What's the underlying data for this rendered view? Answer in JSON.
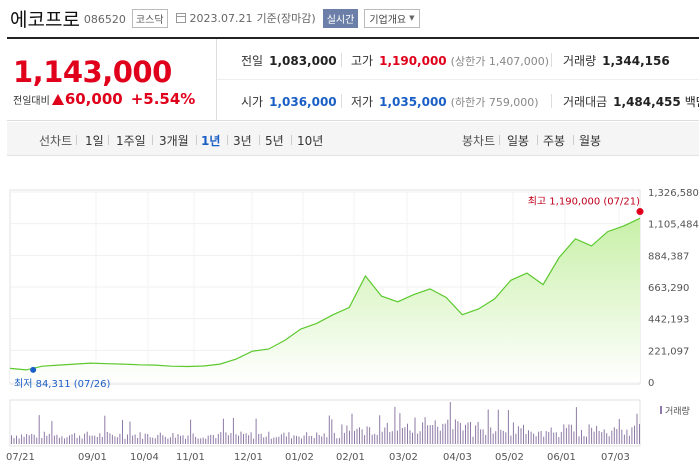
{
  "header": {
    "name": "에코프로",
    "code": "086520",
    "market": "코스닥",
    "date": "2023.07.21",
    "basis": "기준(장마감)",
    "realtime": "실시간",
    "company": "기업개요"
  },
  "summary": {
    "price": "1,143,000",
    "change_label": "전일대비",
    "change_amount": "60,000",
    "change_percent": "+5.54%",
    "prev_close_label": "전일",
    "prev_close": "1,083,000",
    "high_label": "고가",
    "high": "1,190,000",
    "upper_limit": "(상한가 1,407,000)",
    "volume_label": "거래량",
    "volume": "1,344,156",
    "open_label": "시가",
    "open": "1,036,000",
    "low_label": "저가",
    "low": "1,035,000",
    "lower_limit": "(하한가 759,000)",
    "amount_label": "거래대금",
    "amount": "1,484,455",
    "amount_unit": "백만"
  },
  "periods": {
    "line_label": "선차트",
    "items": [
      "1일",
      "1주일",
      "3개월",
      "1년",
      "3년",
      "5년",
      "10년"
    ],
    "active": "1년",
    "candle_label": "봉차트",
    "candles": [
      "일봉",
      "주봉",
      "월봉"
    ]
  },
  "chart_data": {
    "type": "area",
    "y_ticks": [
      "1,326,580",
      "1,105,484",
      "884,387",
      "663,290",
      "442,193",
      "221,097",
      "0"
    ],
    "ylim": [
      0,
      1326580
    ],
    "x_ticks": [
      "07/21",
      "09/01",
      "10/04",
      "11/01",
      "12/01",
      "01/02",
      "02/01",
      "03/02",
      "04/03",
      "05/02",
      "06/01",
      "07/03"
    ],
    "max_label": "최고 1,190,000 (07/21)",
    "min_label": "최저 84,311 (07/26)",
    "volume_legend": "거래량",
    "colors": {
      "line": "#5cc92e",
      "fill_top": "#c8f0a8",
      "max_dot": "#e0001b",
      "min_dot": "#1a5fc5",
      "volume": "#8e7aa6"
    },
    "series": [
      {
        "x": "07/21",
        "y": 95000
      },
      {
        "x": "07/26",
        "y": 84311
      },
      {
        "x": "08/01",
        "y": 110000
      },
      {
        "x": "08/15",
        "y": 118000
      },
      {
        "x": "09/01",
        "y": 125000
      },
      {
        "x": "09/15",
        "y": 132000
      },
      {
        "x": "10/04",
        "y": 128000
      },
      {
        "x": "10/18",
        "y": 125000
      },
      {
        "x": "11/01",
        "y": 120000
      },
      {
        "x": "11/15",
        "y": 118000
      },
      {
        "x": "12/01",
        "y": 110000
      },
      {
        "x": "12/15",
        "y": 108000
      },
      {
        "x": "01/02",
        "y": 112000
      },
      {
        "x": "01/16",
        "y": 125000
      },
      {
        "x": "02/01",
        "y": 160000
      },
      {
        "x": "02/10",
        "y": 215000
      },
      {
        "x": "02/20",
        "y": 230000
      },
      {
        "x": "03/02",
        "y": 290000
      },
      {
        "x": "03/10",
        "y": 370000
      },
      {
        "x": "03/20",
        "y": 410000
      },
      {
        "x": "03/28",
        "y": 470000
      },
      {
        "x": "04/03",
        "y": 520000
      },
      {
        "x": "04/10",
        "y": 740000
      },
      {
        "x": "04/14",
        "y": 600000
      },
      {
        "x": "04/20",
        "y": 560000
      },
      {
        "x": "04/28",
        "y": 610000
      },
      {
        "x": "05/02",
        "y": 650000
      },
      {
        "x": "05/12",
        "y": 590000
      },
      {
        "x": "05/22",
        "y": 470000
      },
      {
        "x": "06/01",
        "y": 510000
      },
      {
        "x": "06/08",
        "y": 580000
      },
      {
        "x": "06/15",
        "y": 710000
      },
      {
        "x": "06/22",
        "y": 760000
      },
      {
        "x": "06/28",
        "y": 680000
      },
      {
        "x": "07/03",
        "y": 870000
      },
      {
        "x": "07/07",
        "y": 1000000
      },
      {
        "x": "07/12",
        "y": 950000
      },
      {
        "x": "07/17",
        "y": 1050000
      },
      {
        "x": "07/20",
        "y": 1090000
      },
      {
        "x": "07/21",
        "y": 1143000
      }
    ]
  }
}
